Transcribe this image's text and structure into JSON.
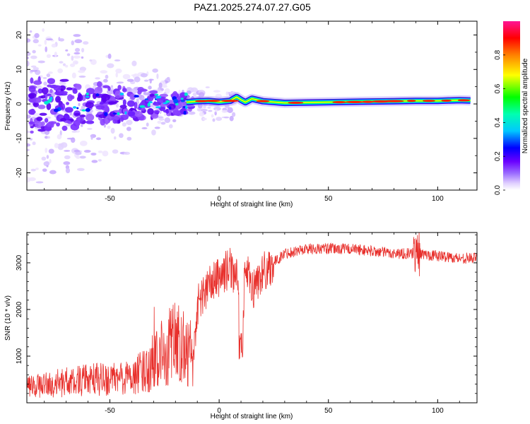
{
  "title": "PAZ1.2025.274.07.27.G05",
  "chart_data": [
    {
      "type": "heatmap",
      "name": "spectrogram",
      "xlabel": "Height of straight line (km)",
      "ylabel": "Frequency (Hz)",
      "xlim": [
        -88,
        118
      ],
      "ylim": [
        -25,
        24
      ],
      "xticks": [
        -50,
        0,
        50,
        100
      ],
      "yticks": [
        -20,
        -10,
        0,
        10,
        20
      ],
      "carrier_track": {
        "description_values": "dominant spectral line frequency (Hz) vs height (km)",
        "x": [
          -15,
          -10,
          -5,
          0,
          5,
          8,
          10,
          12,
          15,
          20,
          30,
          40,
          50,
          60,
          70,
          80,
          90,
          100,
          110,
          115
        ],
        "y": [
          0.5,
          0.8,
          0.9,
          0.6,
          0.9,
          2.0,
          1.2,
          0.5,
          1.5,
          0.8,
          0.3,
          0.4,
          0.5,
          0.6,
          0.7,
          0.8,
          0.9,
          0.9,
          1.1,
          1.0
        ]
      },
      "colorbar": {
        "label": "Normalized spectral amplitude",
        "range": [
          0,
          1
        ],
        "ticks": [
          "0.0",
          "0.2",
          "0.4",
          "0.6",
          "0.8"
        ],
        "tick_values": [
          0.0,
          0.2,
          0.4,
          0.6,
          0.8
        ],
        "colors": [
          "#ffffff",
          "#c8a8ff",
          "#6a00ff",
          "#0000ff",
          "#00e5ff",
          "#00ff00",
          "#ffff00",
          "#ff8000",
          "#ff0000",
          "#ff1493"
        ]
      }
    },
    {
      "type": "line",
      "name": "snr",
      "xlabel": "Height of straight line (km)",
      "ylabel": "SNR (10 * v/v)",
      "xlim": [
        -88,
        118
      ],
      "ylim": [
        0,
        3650
      ],
      "xticks": [
        -50,
        0,
        50,
        100
      ],
      "yticks": [
        1000,
        2000,
        3000
      ],
      "color": "#e8302c",
      "series": [
        {
          "name": "SNR",
          "x": [
            -88,
            -80,
            -70,
            -60,
            -50,
            -40,
            -35,
            -30,
            -25,
            -20,
            -15,
            -12,
            -10,
            -5,
            0,
            5,
            8,
            10,
            12,
            15,
            20,
            25,
            30,
            40,
            50,
            60,
            70,
            80,
            90,
            100,
            110,
            118
          ],
          "y": [
            300,
            350,
            400,
            450,
            450,
            500,
            600,
            800,
            1100,
            1200,
            1100,
            800,
            2100,
            2500,
            2700,
            2900,
            2700,
            1200,
            2900,
            2400,
            2800,
            3000,
            3200,
            3300,
            3300,
            3300,
            3250,
            3200,
            3200,
            3150,
            3100,
            3100
          ]
        }
      ]
    }
  ]
}
